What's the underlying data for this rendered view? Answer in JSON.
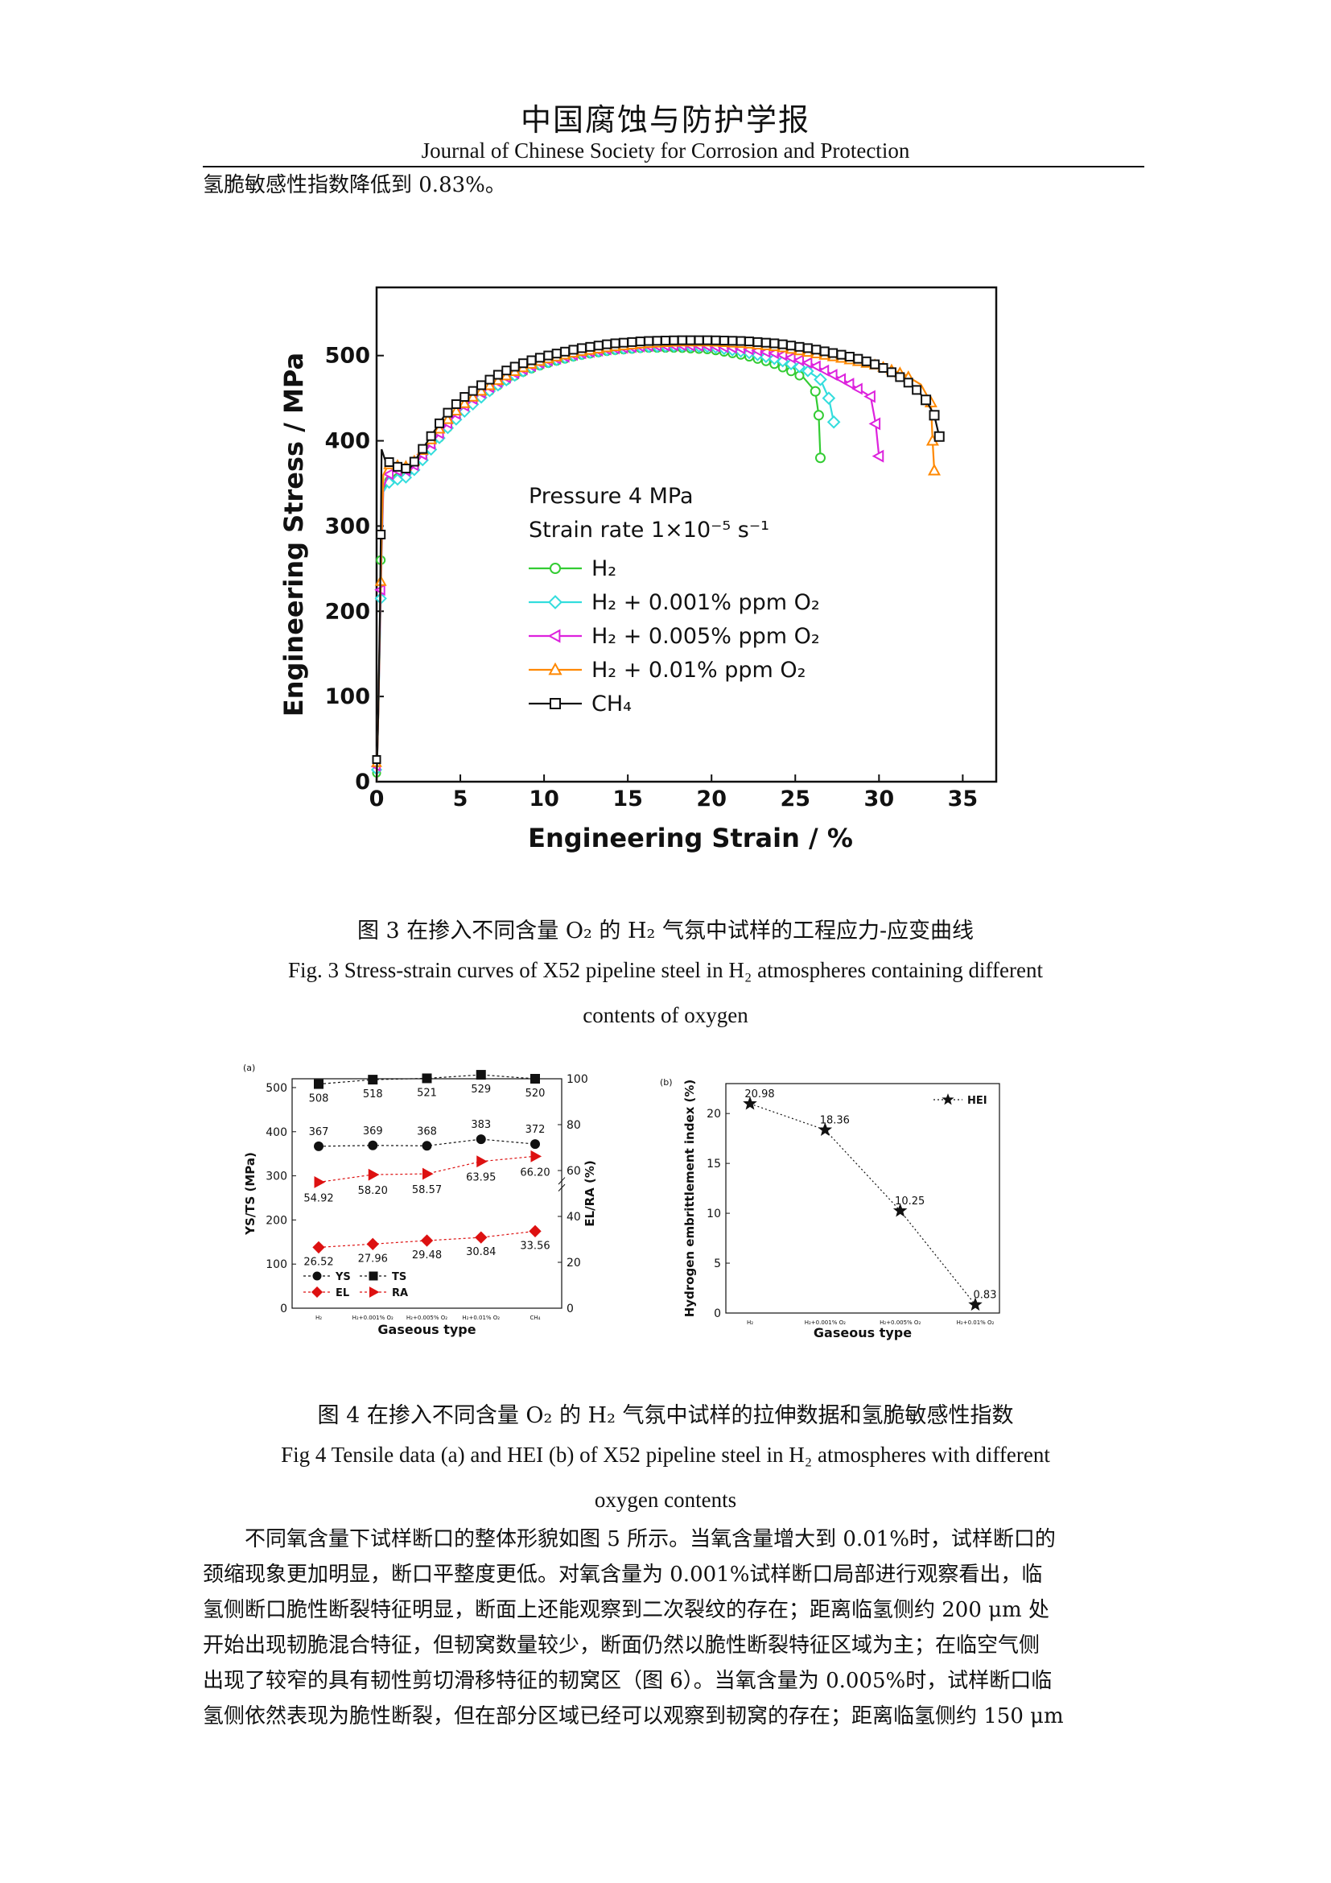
{
  "header": {
    "title_cn": "中国腐蚀与防护学报",
    "title_en": "Journal of Chinese Society for Corrosion and Protection"
  },
  "intro_line": "氢脆敏感性指数降低到 0.83%。",
  "fig3": {
    "caption_cn": "图  3  在掺入不同含量 O₂ 的 H₂ 气氛中试样的工程应力-应变曲线",
    "caption_en_1": "Fig. 3 Stress-strain curves of X52 pipeline steel in H₂ atmospheres containing different",
    "caption_en_2": "contents of oxygen"
  },
  "fig4": {
    "caption_cn": "图  4  在掺入不同含量 O₂ 的 H₂ 气氛中试样的拉伸数据和氢脆敏感性指数",
    "caption_en_1": "Fig 4 Tensile data (a) and HEI (b) of X52 pipeline steel in H₂ atmospheres with different",
    "caption_en_2": "oxygen contents"
  },
  "body_lines": [
    "不同氧含量下试样断口的整体形貌如图 5 所示。当氧含量增大到 0.01%时，试样断口的",
    "颈缩现象更加明显，断口平整度更低。对氧含量为 0.001%试样断口局部进行观察看出，临",
    "氢侧断口脆性断裂特征明显，断面上还能观察到二次裂纹的存在；距离临氢侧约 200 μm 处",
    "开始出现韧脆混合特征，但韧窝数量较少，断面仍然以脆性断裂特征区域为主；在临空气侧",
    "出现了较窄的具有韧性剪切滑移特征的韧窝区（图 6）。当氧含量为 0.005%时，试样断口临",
    "氢侧依然表现为脆性断裂，但在部分区域已经可以观察到韧窝的存在；距离临氢侧约 150 μm"
  ],
  "chart_data": [
    {
      "id": "fig3",
      "type": "line",
      "xlabel": "Engineering Strain / %",
      "ylabel": "Engineering Stress / MPa",
      "xlim": [
        0,
        37
      ],
      "ylim": [
        0,
        580
      ],
      "xticks": [
        0,
        5,
        10,
        15,
        20,
        25,
        30,
        35
      ],
      "yticks": [
        0,
        100,
        200,
        300,
        400,
        500
      ],
      "legend_title_1": "Pressure 4 MPa",
      "legend_title_2": "Strain rate 1×10⁻⁵ s⁻¹",
      "legend_position": "center",
      "series": [
        {
          "name": "H₂",
          "color": "#33cc33",
          "marker": "circle",
          "points": [
            [
              0,
              0
            ],
            [
              0.1,
              80
            ],
            [
              0.2,
              180
            ],
            [
              0.25,
              260
            ],
            [
              0.35,
              340
            ],
            [
              0.6,
              352
            ],
            [
              1,
              355
            ],
            [
              1.5,
              358
            ],
            [
              2,
              362
            ],
            [
              3,
              385
            ],
            [
              4,
              410
            ],
            [
              5,
              432
            ],
            [
              6,
              448
            ],
            [
              7,
              462
            ],
            [
              8,
              474
            ],
            [
              9,
              483
            ],
            [
              10,
              490
            ],
            [
              12,
              500
            ],
            [
              14,
              506
            ],
            [
              16,
              509
            ],
            [
              18,
              509
            ],
            [
              20,
              507
            ],
            [
              22,
              500
            ],
            [
              23.5,
              492
            ],
            [
              24.5,
              484
            ],
            [
              25.5,
              474
            ],
            [
              26.2,
              458
            ],
            [
              26.4,
              430
            ],
            [
              26.5,
              380
            ]
          ]
        },
        {
          "name": "H₂ + 0.001% ppm O₂",
          "color": "#33dddd",
          "marker": "diamond",
          "points": [
            [
              0,
              0
            ],
            [
              0.1,
              80
            ],
            [
              0.2,
              170
            ],
            [
              0.3,
              260
            ],
            [
              0.4,
              340
            ],
            [
              0.7,
              350
            ],
            [
              1,
              355
            ],
            [
              1.5,
              354
            ],
            [
              2,
              360
            ],
            [
              3,
              383
            ],
            [
              4,
              410
            ],
            [
              5,
              430
            ],
            [
              6,
              447
            ],
            [
              7,
              462
            ],
            [
              8,
              474
            ],
            [
              9,
              484
            ],
            [
              10,
              491
            ],
            [
              12,
              501
            ],
            [
              14,
              507
            ],
            [
              16,
              510
            ],
            [
              18,
              511
            ],
            [
              20,
              510
            ],
            [
              22,
              504
            ],
            [
              24,
              495
            ],
            [
              25.5,
              485
            ],
            [
              26.5,
              472
            ],
            [
              27,
              450
            ],
            [
              27.3,
              422
            ]
          ]
        },
        {
          "name": "H₂ + 0.005% ppm O₂",
          "color": "#dd22dd",
          "marker": "triangle-left",
          "points": [
            [
              0,
              0
            ],
            [
              0.1,
              80
            ],
            [
              0.2,
              180
            ],
            [
              0.3,
              270
            ],
            [
              0.4,
              345
            ],
            [
              0.7,
              360
            ],
            [
              1,
              365
            ],
            [
              1.5,
              365
            ],
            [
              2,
              365
            ],
            [
              3,
              390
            ],
            [
              4,
              415
            ],
            [
              5,
              437
            ],
            [
              6,
              453
            ],
            [
              7,
              466
            ],
            [
              8,
              477
            ],
            [
              9,
              486
            ],
            [
              10,
              493
            ],
            [
              12,
              502
            ],
            [
              14,
              508
            ],
            [
              16,
              511
            ],
            [
              18,
              512
            ],
            [
              20,
              511
            ],
            [
              22,
              508
            ],
            [
              24,
              502
            ],
            [
              26,
              490
            ],
            [
              28,
              470
            ],
            [
              29.5,
              452
            ],
            [
              29.8,
              420
            ],
            [
              30,
              382
            ]
          ]
        },
        {
          "name": "H₂ + 0.01% ppm O₂",
          "color": "#ff8800",
          "marker": "triangle-up",
          "points": [
            [
              0,
              0
            ],
            [
              0.1,
              80
            ],
            [
              0.2,
              190
            ],
            [
              0.3,
              280
            ],
            [
              0.4,
              360
            ],
            [
              0.7,
              372
            ],
            [
              1,
              372
            ],
            [
              1.5,
              370
            ],
            [
              2,
              370
            ],
            [
              3,
              395
            ],
            [
              4,
              420
            ],
            [
              5,
              440
            ],
            [
              6,
              455
            ],
            [
              7,
              468
            ],
            [
              8,
              479
            ],
            [
              9,
              488
            ],
            [
              10,
              495
            ],
            [
              12,
              504
            ],
            [
              14,
              510
            ],
            [
              16,
              514
            ],
            [
              18,
              516
            ],
            [
              20,
              516
            ],
            [
              22,
              514
            ],
            [
              24,
              510
            ],
            [
              26,
              503
            ],
            [
              28,
              496
            ],
            [
              30,
              488
            ],
            [
              31.5,
              478
            ],
            [
              32.5,
              466
            ],
            [
              33.1,
              445
            ],
            [
              33.2,
              400
            ],
            [
              33.3,
              365
            ]
          ]
        },
        {
          "name": "CH₄",
          "color": "#111111",
          "marker": "square",
          "points": [
            [
              0,
              0
            ],
            [
              0.1,
              85
            ],
            [
              0.2,
              200
            ],
            [
              0.25,
              290
            ],
            [
              0.3,
              390
            ],
            [
              0.5,
              378
            ],
            [
              1,
              372
            ],
            [
              1.5,
              367
            ],
            [
              2,
              368
            ],
            [
              3,
              398
            ],
            [
              4,
              428
            ],
            [
              5,
              448
            ],
            [
              6,
              462
            ],
            [
              7,
              475
            ],
            [
              8,
              485
            ],
            [
              9,
              493
            ],
            [
              10,
              499
            ],
            [
              12,
              508
            ],
            [
              14,
              514
            ],
            [
              16,
              517
            ],
            [
              18,
              518
            ],
            [
              20,
              518
            ],
            [
              22,
              517
            ],
            [
              24,
              514
            ],
            [
              26,
              508
            ],
            [
              28,
              500
            ],
            [
              29,
              495
            ],
            [
              30,
              488
            ],
            [
              31,
              478
            ],
            [
              32,
              465
            ],
            [
              32.8,
              448
            ],
            [
              33.3,
              430
            ],
            [
              33.6,
              405
            ]
          ]
        }
      ]
    },
    {
      "id": "fig4a",
      "type": "line",
      "panel_label": "(a)",
      "categories": [
        "H₂",
        "H₂+0.001% O₂",
        "H₂+0.005% O₂",
        "H₂+0.01% O₂",
        "CH₄"
      ],
      "xlabel": "Gaseous type",
      "ylabel": "YS/TS (MPa)",
      "ylabel_right": "EL/RA (%)",
      "ylim": [
        0,
        520
      ],
      "yticks": [
        0,
        100,
        200,
        300,
        400,
        500
      ],
      "ylim_right": [
        0,
        100
      ],
      "yticks_right": [
        0,
        20,
        40,
        60,
        80,
        100
      ],
      "legend_position": "bottom-left",
      "series": [
        {
          "name": "YS",
          "axis": "left",
          "color": "#111111",
          "marker": "circle",
          "values": [
            367,
            369,
            368,
            383,
            372
          ],
          "labels": [
            "367",
            "369",
            "368",
            "383",
            "372"
          ]
        },
        {
          "name": "TS",
          "axis": "left",
          "color": "#111111",
          "marker": "square",
          "values": [
            508,
            518,
            521,
            529,
            520
          ],
          "labels": [
            "508",
            "518",
            "521",
            "529",
            "520"
          ]
        },
        {
          "name": "EL",
          "axis": "right",
          "color": "#dd1111",
          "marker": "diamond",
          "values": [
            26.52,
            27.96,
            29.48,
            30.84,
            33.56
          ],
          "labels": [
            "26.52",
            "27.96",
            "29.48",
            "30.84",
            "33.56"
          ]
        },
        {
          "name": "RA",
          "axis": "right",
          "color": "#dd1111",
          "marker": "triangle-right",
          "values": [
            54.92,
            58.2,
            58.57,
            63.95,
            66.2
          ],
          "labels": [
            "54.92",
            "58.20",
            "58.57",
            "63.95",
            "66.20"
          ]
        }
      ]
    },
    {
      "id": "fig4b",
      "type": "line",
      "panel_label": "(b)",
      "categories": [
        "H₂",
        "H₂+0.001% O₂",
        "H₂+0.005% O₂",
        "H₂+0.01% O₂"
      ],
      "xlabel": "Gaseous type",
      "ylabel": "Hydrogen embrittlement index (%)",
      "ylim": [
        0,
        23
      ],
      "yticks": [
        0,
        5,
        10,
        15,
        20
      ],
      "legend_position": "top-right",
      "series": [
        {
          "name": "HEI",
          "color": "#111111",
          "marker": "star",
          "values": [
            20.98,
            18.36,
            10.25,
            0.83
          ],
          "labels": [
            "20.98",
            "18.36",
            "10.25",
            "0.83"
          ]
        }
      ]
    }
  ]
}
